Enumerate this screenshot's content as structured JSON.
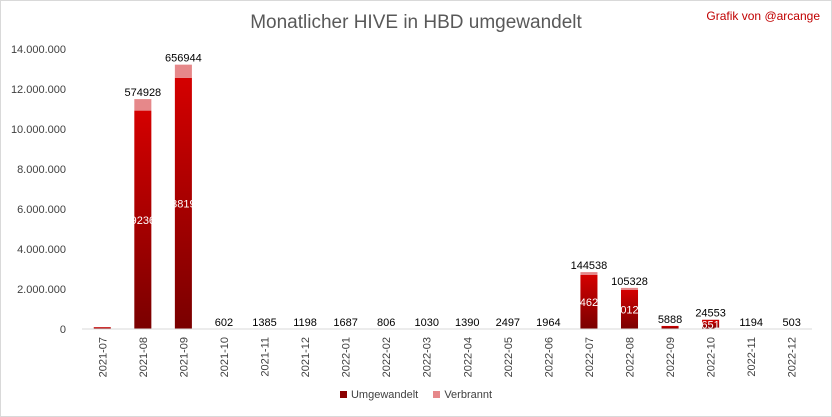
{
  "title": "Monatlicher HIVE in HBD umgewandelt",
  "credit": "Grafik von @arcange",
  "colors": {
    "converted": "#c00000",
    "burned": "#e6888a"
  },
  "chart_data": {
    "type": "bar",
    "stacked": true,
    "title": "Monatlicher HIVE in HBD umgewandelt",
    "xlabel": "",
    "ylabel": "",
    "ylim": [
      0,
      14000000
    ],
    "yticks": [
      0,
      2000000,
      4000000,
      6000000,
      8000000,
      10000000,
      12000000,
      14000000
    ],
    "ytick_labels": [
      "0",
      "2.000.000",
      "4.000.000",
      "6.000.000",
      "8.000.000",
      "10.000.000",
      "12.000.000",
      "14.000.000"
    ],
    "grid": false,
    "legend": "bottom",
    "categories": [
      "2021-07",
      "2021-08",
      "2021-09",
      "2021-10",
      "2021-11",
      "2021-12",
      "2022-01",
      "2022-02",
      "2022-03",
      "2022-04",
      "2022-05",
      "2022-06",
      "2022-07",
      "2022-08",
      "2022-09",
      "2022-10",
      "2022-11",
      "2022-12"
    ],
    "series": [
      {
        "name": "Umgewandelt",
        "values": [
          90000,
          10920000,
          12560000,
          0,
          0,
          0,
          0,
          0,
          0,
          0,
          0,
          0,
          2700000,
          1950000,
          150000,
          450000,
          0,
          0
        ],
        "labels": [
          "",
          "9236",
          "3819",
          "",
          "",
          "",
          "",
          "",
          "",
          "",
          "",
          "",
          "462",
          "012",
          "",
          "651",
          "",
          ""
        ]
      },
      {
        "name": "Verbrannt",
        "values": [
          0,
          574928,
          656944,
          602,
          1385,
          1198,
          1687,
          806,
          1030,
          1390,
          2497,
          1964,
          144538,
          105328,
          5888,
          24553,
          1194,
          503
        ],
        "labels": [
          "",
          "574928",
          "656944",
          "602",
          "1385",
          "1198",
          "1687",
          "806",
          "1030",
          "1390",
          "2497",
          "1964",
          "144538",
          "105328",
          "5888",
          "24553",
          "1194",
          "503"
        ]
      }
    ]
  }
}
